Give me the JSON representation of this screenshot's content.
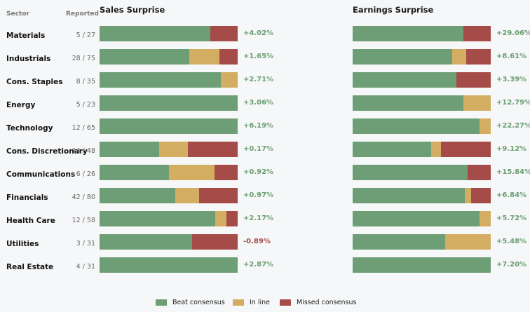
{
  "headers": {
    "sector": "Sector",
    "reported": "Reported"
  },
  "colors": {
    "beat": "#6d9e76",
    "inline": "#d3ad62",
    "missed": "#a54b48"
  },
  "legend": [
    {
      "key": "beat",
      "label": "Beat consensus"
    },
    {
      "key": "inline",
      "label": "In line"
    },
    {
      "key": "missed",
      "label": "Missed consensus"
    }
  ],
  "chart_data": [
    {
      "type": "bar",
      "title": "Sales Surprise",
      "stacked": true,
      "orientation": "horizontal",
      "categories": [
        "Materials",
        "Industrials",
        "Cons. Staples",
        "Energy",
        "Technology",
        "Cons. Discretionary",
        "Communications",
        "Financials",
        "Health Care",
        "Utilities",
        "Real Estate"
      ],
      "reported": [
        "5 / 27",
        "28 / 75",
        "8 / 35",
        "5 / 23",
        "12 / 65",
        "14 / 48",
        "6 / 26",
        "42 / 80",
        "12 / 58",
        "3 / 31",
        "4 / 31"
      ],
      "series": [
        {
          "name": "Beat consensus",
          "values": [
            80,
            65,
            88,
            100,
            100,
            43,
            50,
            55,
            84,
            67,
            100
          ]
        },
        {
          "name": "In line",
          "values": [
            0,
            22,
            12,
            0,
            0,
            21,
            33,
            17,
            8,
            0,
            0
          ]
        },
        {
          "name": "Missed consensus",
          "values": [
            20,
            13,
            0,
            0,
            0,
            36,
            17,
            28,
            8,
            33,
            0
          ]
        }
      ],
      "surprise": [
        "+4.02%",
        "+1.65%",
        "+2.71%",
        "+3.06%",
        "+6.19%",
        "+0.17%",
        "+0.92%",
        "+0.97%",
        "+2.17%",
        "-0.89%",
        "+2.87%"
      ]
    },
    {
      "type": "bar",
      "title": "Earnings Surprise",
      "stacked": true,
      "orientation": "horizontal",
      "categories": [
        "Materials",
        "Industrials",
        "Cons. Staples",
        "Energy",
        "Technology",
        "Cons. Discretionary",
        "Communications",
        "Financials",
        "Health Care",
        "Utilities",
        "Real Estate"
      ],
      "series": [
        {
          "name": "Beat consensus",
          "values": [
            80,
            72,
            75,
            80,
            92,
            57,
            83,
            81,
            92,
            67,
            100
          ]
        },
        {
          "name": "In line",
          "values": [
            0,
            10,
            0,
            20,
            8,
            7,
            0,
            5,
            8,
            33,
            0
          ]
        },
        {
          "name": "Missed consensus",
          "values": [
            20,
            18,
            25,
            0,
            0,
            36,
            17,
            14,
            0,
            0,
            0
          ]
        }
      ],
      "surprise": [
        "+29.06%",
        "+8.61%",
        "+3.39%",
        "+12.79%",
        "+22.27%",
        "+9.12%",
        "+15.84%",
        "+6.84%",
        "+5.72%",
        "+5.48%",
        "+7.20%"
      ]
    }
  ]
}
